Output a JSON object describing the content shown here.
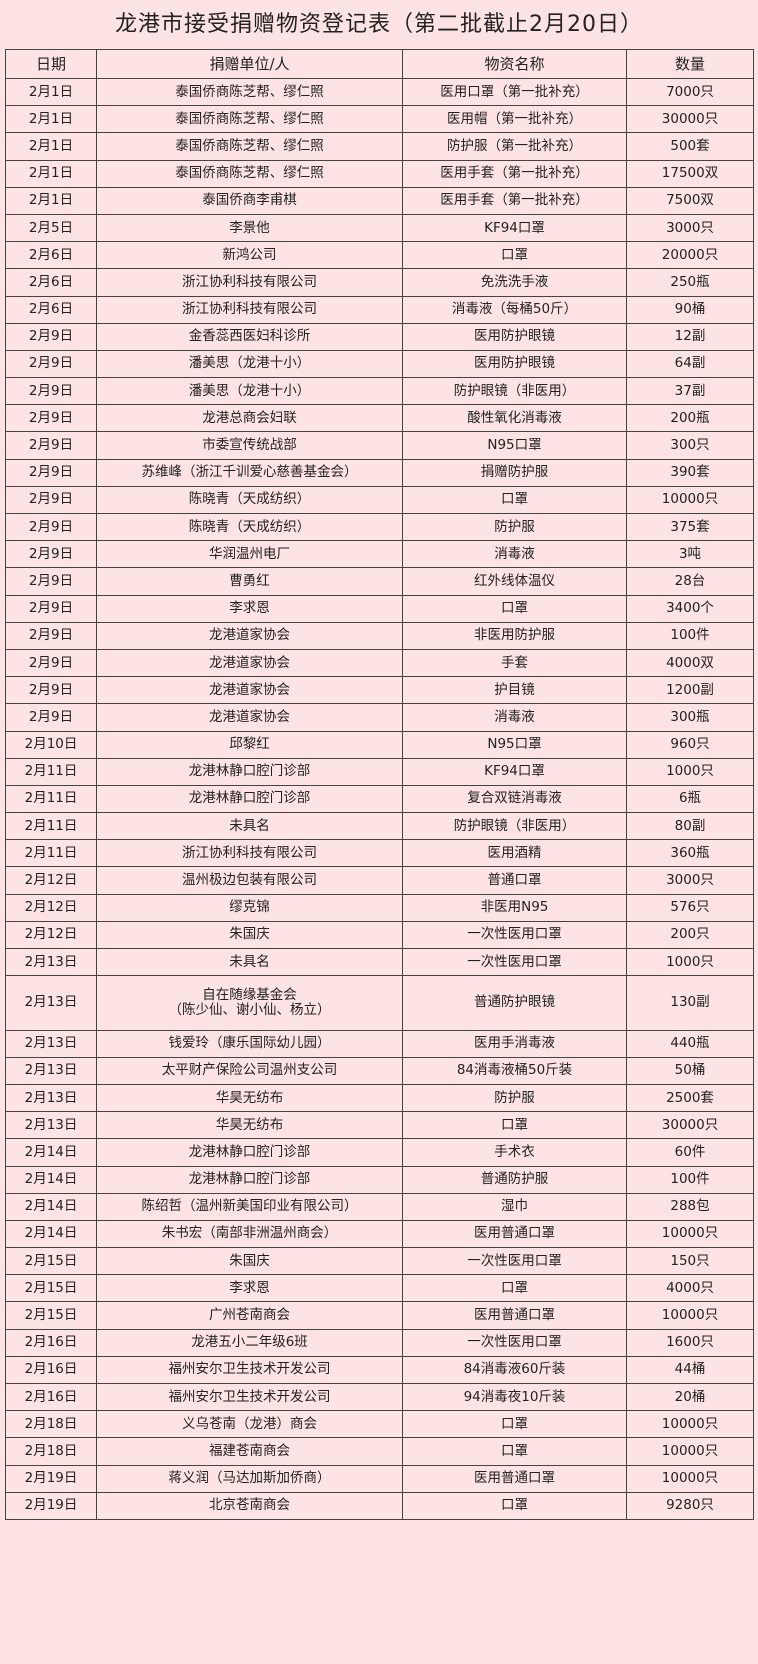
{
  "title": "龙港市接受捐赠物资登记表（第二批截止2月20日）",
  "headers": [
    "日期",
    "捐赠单位/人",
    "物资名称",
    "数量"
  ],
  "rows": [
    [
      "2月1日",
      "泰国侨商陈芝帮、缪仁照",
      "医用口罩（第一批补充）",
      "7000只"
    ],
    [
      "2月1日",
      "泰国侨商陈芝帮、缪仁照",
      "医用帽（第一批补充）",
      "30000只"
    ],
    [
      "2月1日",
      "泰国侨商陈芝帮、缪仁照",
      "防护服（第一批补充）",
      "500套"
    ],
    [
      "2月1日",
      "泰国侨商陈芝帮、缪仁照",
      "医用手套（第一批补充）",
      "17500双"
    ],
    [
      "2月1日",
      "泰国侨商李甫棋",
      "医用手套（第一批补充）",
      "7500双"
    ],
    [
      "2月5日",
      "李景他",
      "KF94口罩",
      "3000只"
    ],
    [
      "2月6日",
      "新鸿公司",
      "口罩",
      "20000只"
    ],
    [
      "2月6日",
      "浙江协利科技有限公司",
      "免洗洗手液",
      "250瓶"
    ],
    [
      "2月6日",
      "浙江协利科技有限公司",
      "消毒液（每桶50斤）",
      "90桶"
    ],
    [
      "2月9日",
      "金香蕊西医妇科诊所",
      "医用防护眼镜",
      "12副"
    ],
    [
      "2月9日",
      "潘美思（龙港十小）",
      "医用防护眼镜",
      "64副"
    ],
    [
      "2月9日",
      "潘美思（龙港十小）",
      "防护眼镜（非医用）",
      "37副"
    ],
    [
      "2月9日",
      "龙港总商会妇联",
      "酸性氧化消毒液",
      "200瓶"
    ],
    [
      "2月9日",
      "市委宣传统战部",
      "N95口罩",
      "300只"
    ],
    [
      "2月9日",
      "苏维峰（浙江千训爱心慈善基金会）",
      "捐赠防护服",
      "390套"
    ],
    [
      "2月9日",
      "陈晓青（天成纺织）",
      "口罩",
      "10000只"
    ],
    [
      "2月9日",
      "陈晓青（天成纺织）",
      "防护服",
      "375套"
    ],
    [
      "2月9日",
      "华润温州电厂",
      "消毒液",
      "3吨"
    ],
    [
      "2月9日",
      "曹勇红",
      "红外线体温仪",
      "28台"
    ],
    [
      "2月9日",
      "李求恩",
      "口罩",
      "3400个"
    ],
    [
      "2月9日",
      "龙港道家协会",
      "非医用防护服",
      "100件"
    ],
    [
      "2月9日",
      "龙港道家协会",
      "手套",
      "4000双"
    ],
    [
      "2月9日",
      "龙港道家协会",
      "护目镜",
      "1200副"
    ],
    [
      "2月9日",
      "龙港道家协会",
      "消毒液",
      "300瓶"
    ],
    [
      "2月10日",
      "邱黎红",
      "N95口罩",
      "960只"
    ],
    [
      "2月11日",
      "龙港林静口腔门诊部",
      "KF94口罩",
      "1000只"
    ],
    [
      "2月11日",
      "龙港林静口腔门诊部",
      "复合双链消毒液",
      "6瓶"
    ],
    [
      "2月11日",
      "未具名",
      "防护眼镜（非医用）",
      "80副"
    ],
    [
      "2月11日",
      "浙江协利科技有限公司",
      "医用酒精",
      "360瓶"
    ],
    [
      "2月12日",
      "温州极边包装有限公司",
      "普通口罩",
      "3000只"
    ],
    [
      "2月12日",
      "缪克锦",
      "非医用N95",
      "576只"
    ],
    [
      "2月12日",
      "朱国庆",
      "一次性医用口罩",
      "200只"
    ],
    [
      "2月13日",
      "未具名",
      "一次性医用口罩",
      "1000只"
    ],
    [
      "2月13日",
      "自在随缘基金会\n（陈少仙、谢小仙、杨立）",
      "普通防护眼镜",
      "130副"
    ],
    [
      "2月13日",
      "钱爱玲（康乐国际幼儿园）",
      "医用手消毒液",
      "440瓶"
    ],
    [
      "2月13日",
      "太平财产保险公司温州支公司",
      "84消毒液桶50斤装",
      "50桶"
    ],
    [
      "2月13日",
      "华昊无纺布",
      "防护服",
      "2500套"
    ],
    [
      "2月13日",
      "华昊无纺布",
      "口罩",
      "30000只"
    ],
    [
      "2月14日",
      "龙港林静口腔门诊部",
      "手术衣",
      "60件"
    ],
    [
      "2月14日",
      "龙港林静口腔门诊部",
      "普通防护服",
      "100件"
    ],
    [
      "2月14日",
      "陈绍哲（温州新美国印业有限公司）",
      "湿巾",
      "288包"
    ],
    [
      "2月14日",
      "朱书宏（南部非洲温州商会）",
      "医用普通口罩",
      "10000只"
    ],
    [
      "2月15日",
      "朱国庆",
      "一次性医用口罩",
      "150只"
    ],
    [
      "2月15日",
      "李求恩",
      "口罩",
      "4000只"
    ],
    [
      "2月15日",
      "广州苍南商会",
      "医用普通口罩",
      "10000只"
    ],
    [
      "2月16日",
      "龙港五小二年级6班",
      "一次性医用口罩",
      "1600只"
    ],
    [
      "2月16日",
      "福州安尔卫生技术开发公司",
      "84消毒液60斤装",
      "44桶"
    ],
    [
      "2月16日",
      "福州安尔卫生技术开发公司",
      "94消毒夜10斤装",
      "20桶"
    ],
    [
      "2月18日",
      "义乌苍南（龙港）商会",
      "口罩",
      "10000只"
    ],
    [
      "2月18日",
      "福建苍南商会",
      "口罩",
      "10000只"
    ],
    [
      "2月19日",
      "蒋义润（马达加斯加侨商）",
      "医用普通口罩",
      "10000只"
    ],
    [
      "2月19日",
      "北京苍南商会",
      "口罩",
      "9280只"
    ]
  ]
}
